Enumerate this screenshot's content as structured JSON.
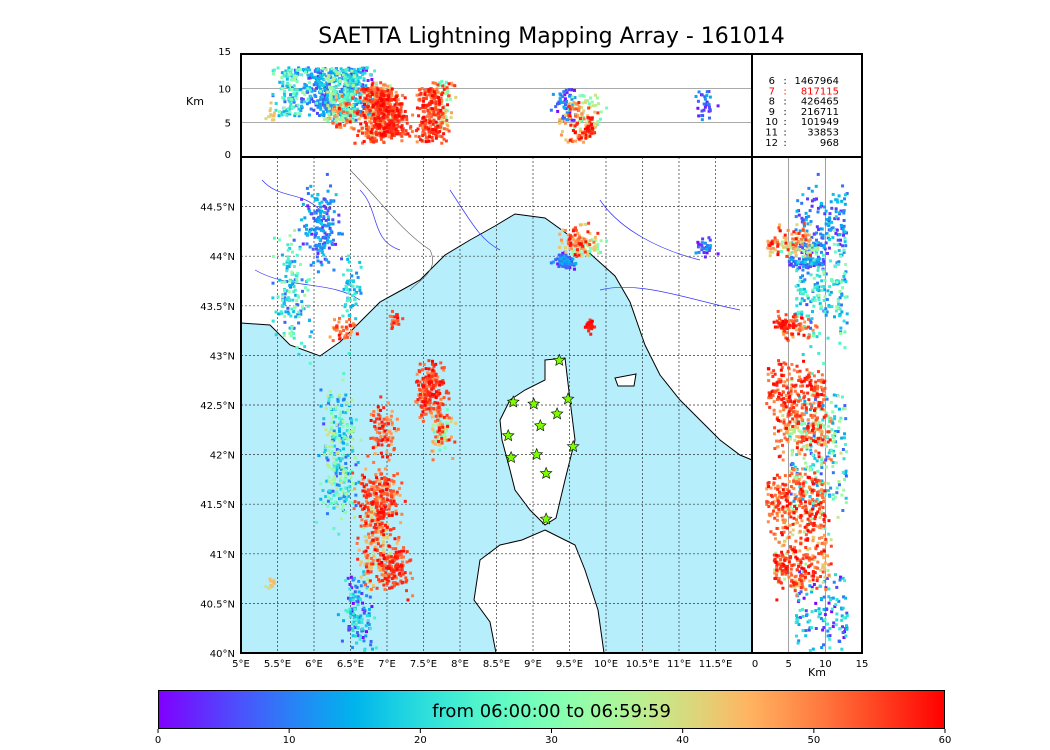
{
  "chart_data": {
    "type": "scatter",
    "title": "SAETTA Lightning Mapping Array - 161014",
    "map": {
      "xticks": [
        "5°E",
        "5.5°E",
        "6°E",
        "6.5°E",
        "7°E",
        "7.5°E",
        "8°E",
        "8.5°E",
        "9°E",
        "9.5°E",
        "10°E",
        "10.5°E",
        "11°E",
        "11.5°E"
      ],
      "yticks": [
        "40°N",
        "40.5°N",
        "41°N",
        "41.5°N",
        "42°N",
        "42.5°N",
        "43°N",
        "43.5°N",
        "44°N",
        "44.5°N"
      ],
      "lon_range": [
        5,
        12
      ],
      "lat_range": [
        40,
        45
      ],
      "sea_color": "#b7eefc",
      "grid": true
    },
    "altitude_axis": {
      "label": "Km",
      "ticks": [
        "0",
        "5",
        "10",
        "15"
      ],
      "range": [
        0,
        15
      ]
    },
    "stations": [
      [
        9.36,
        42.95
      ],
      [
        8.73,
        42.53
      ],
      [
        9.01,
        42.51
      ],
      [
        9.48,
        42.56
      ],
      [
        9.33,
        42.41
      ],
      [
        9.1,
        42.29
      ],
      [
        8.66,
        42.19
      ],
      [
        9.55,
        42.08
      ],
      [
        9.05,
        42.0
      ],
      [
        8.7,
        41.97
      ],
      [
        9.18,
        41.81
      ],
      [
        9.18,
        41.35
      ]
    ],
    "station_color": "#7cfc00",
    "clusters": [
      {
        "lon": 6.1,
        "lat": 44.3,
        "slon": 0.15,
        "slat": 0.25,
        "t": [
          2,
          18
        ],
        "n": 160,
        "alt": [
          6,
          13
        ]
      },
      {
        "lon": 5.7,
        "lat": 43.6,
        "slon": 0.15,
        "slat": 0.35,
        "t": [
          5,
          35
        ],
        "n": 140,
        "alt": [
          6,
          13
        ]
      },
      {
        "lon": 6.5,
        "lat": 43.6,
        "slon": 0.08,
        "slat": 0.2,
        "t": [
          10,
          25
        ],
        "n": 50,
        "alt": [
          6,
          12
        ]
      },
      {
        "lon": 6.4,
        "lat": 43.25,
        "slon": 0.12,
        "slat": 0.08,
        "t": [
          45,
          60
        ],
        "n": 40,
        "alt": [
          4,
          9
        ]
      },
      {
        "lon": 7.6,
        "lat": 42.65,
        "slon": 0.12,
        "slat": 0.18,
        "t": [
          48,
          60
        ],
        "n": 200,
        "alt": [
          2,
          10
        ]
      },
      {
        "lon": 7.75,
        "lat": 42.25,
        "slon": 0.1,
        "slat": 0.15,
        "t": [
          25,
          60
        ],
        "n": 90,
        "alt": [
          4,
          11
        ]
      },
      {
        "lon": 6.95,
        "lat": 42.25,
        "slon": 0.12,
        "slat": 0.15,
        "t": [
          45,
          60
        ],
        "n": 90,
        "alt": [
          3,
          10
        ]
      },
      {
        "lon": 6.35,
        "lat": 42.0,
        "slon": 0.15,
        "slat": 0.45,
        "t": [
          5,
          40
        ],
        "n": 250,
        "alt": [
          5,
          13
        ]
      },
      {
        "lon": 6.9,
        "lat": 41.55,
        "slon": 0.18,
        "slat": 0.2,
        "t": [
          45,
          60
        ],
        "n": 250,
        "alt": [
          2,
          10
        ]
      },
      {
        "lon": 6.85,
        "lat": 41.05,
        "slon": 0.15,
        "slat": 0.25,
        "t": [
          35,
          60
        ],
        "n": 160,
        "alt": [
          3,
          11
        ]
      },
      {
        "lon": 7.1,
        "lat": 40.85,
        "slon": 0.12,
        "slat": 0.15,
        "t": [
          50,
          60
        ],
        "n": 120,
        "alt": [
          3,
          9
        ]
      },
      {
        "lon": 6.6,
        "lat": 40.4,
        "slon": 0.12,
        "slat": 0.25,
        "t": [
          0,
          25
        ],
        "n": 130,
        "alt": [
          6,
          13
        ]
      },
      {
        "lon": 9.6,
        "lat": 44.15,
        "slon": 0.15,
        "slat": 0.1,
        "t": [
          40,
          60
        ],
        "n": 80,
        "alt": [
          2,
          8
        ]
      },
      {
        "lon": 9.75,
        "lat": 44.1,
        "slon": 0.15,
        "slat": 0.06,
        "t": [
          25,
          40
        ],
        "n": 40,
        "alt": [
          4,
          9
        ]
      },
      {
        "lon": 9.45,
        "lat": 43.95,
        "slon": 0.1,
        "slat": 0.06,
        "t": [
          0,
          15
        ],
        "n": 60,
        "alt": [
          5,
          10
        ]
      },
      {
        "lon": 9.78,
        "lat": 43.3,
        "slon": 0.04,
        "slat": 0.04,
        "t": [
          55,
          60
        ],
        "n": 30,
        "alt": [
          3,
          6
        ]
      },
      {
        "lon": 11.35,
        "lat": 44.1,
        "slon": 0.08,
        "slat": 0.06,
        "t": [
          0,
          15
        ],
        "n": 30,
        "alt": [
          5,
          10
        ]
      },
      {
        "lon": 7.1,
        "lat": 43.35,
        "slon": 0.05,
        "slat": 0.06,
        "t": [
          50,
          60
        ],
        "n": 20,
        "alt": [
          3,
          7
        ]
      },
      {
        "lon": 5.4,
        "lat": 40.7,
        "slon": 0.05,
        "slat": 0.03,
        "t": [
          38,
          45
        ],
        "n": 12,
        "alt": [
          5,
          8
        ]
      }
    ],
    "legend": {
      "rows": [
        {
          "km": "6",
          "count": "1467964",
          "color": "#000000"
        },
        {
          "km": "7",
          "count": "817115",
          "color": "#ff0000"
        },
        {
          "km": "8",
          "count": "426465",
          "color": "#000000"
        },
        {
          "km": "9",
          "count": "216711",
          "color": "#000000"
        },
        {
          "km": "10",
          "count": "101949",
          "color": "#000000"
        },
        {
          "km": "11",
          "count": "33853",
          "color": "#000000"
        },
        {
          "km": "12",
          "count": "968",
          "color": "#000000"
        }
      ]
    },
    "colorbar": {
      "label": "from 06:00:00 to 06:59:59",
      "ticks": [
        "0",
        "10",
        "20",
        "30",
        "40",
        "50",
        "60"
      ],
      "range": [
        0,
        60
      ],
      "colormap": "rainbow"
    }
  }
}
